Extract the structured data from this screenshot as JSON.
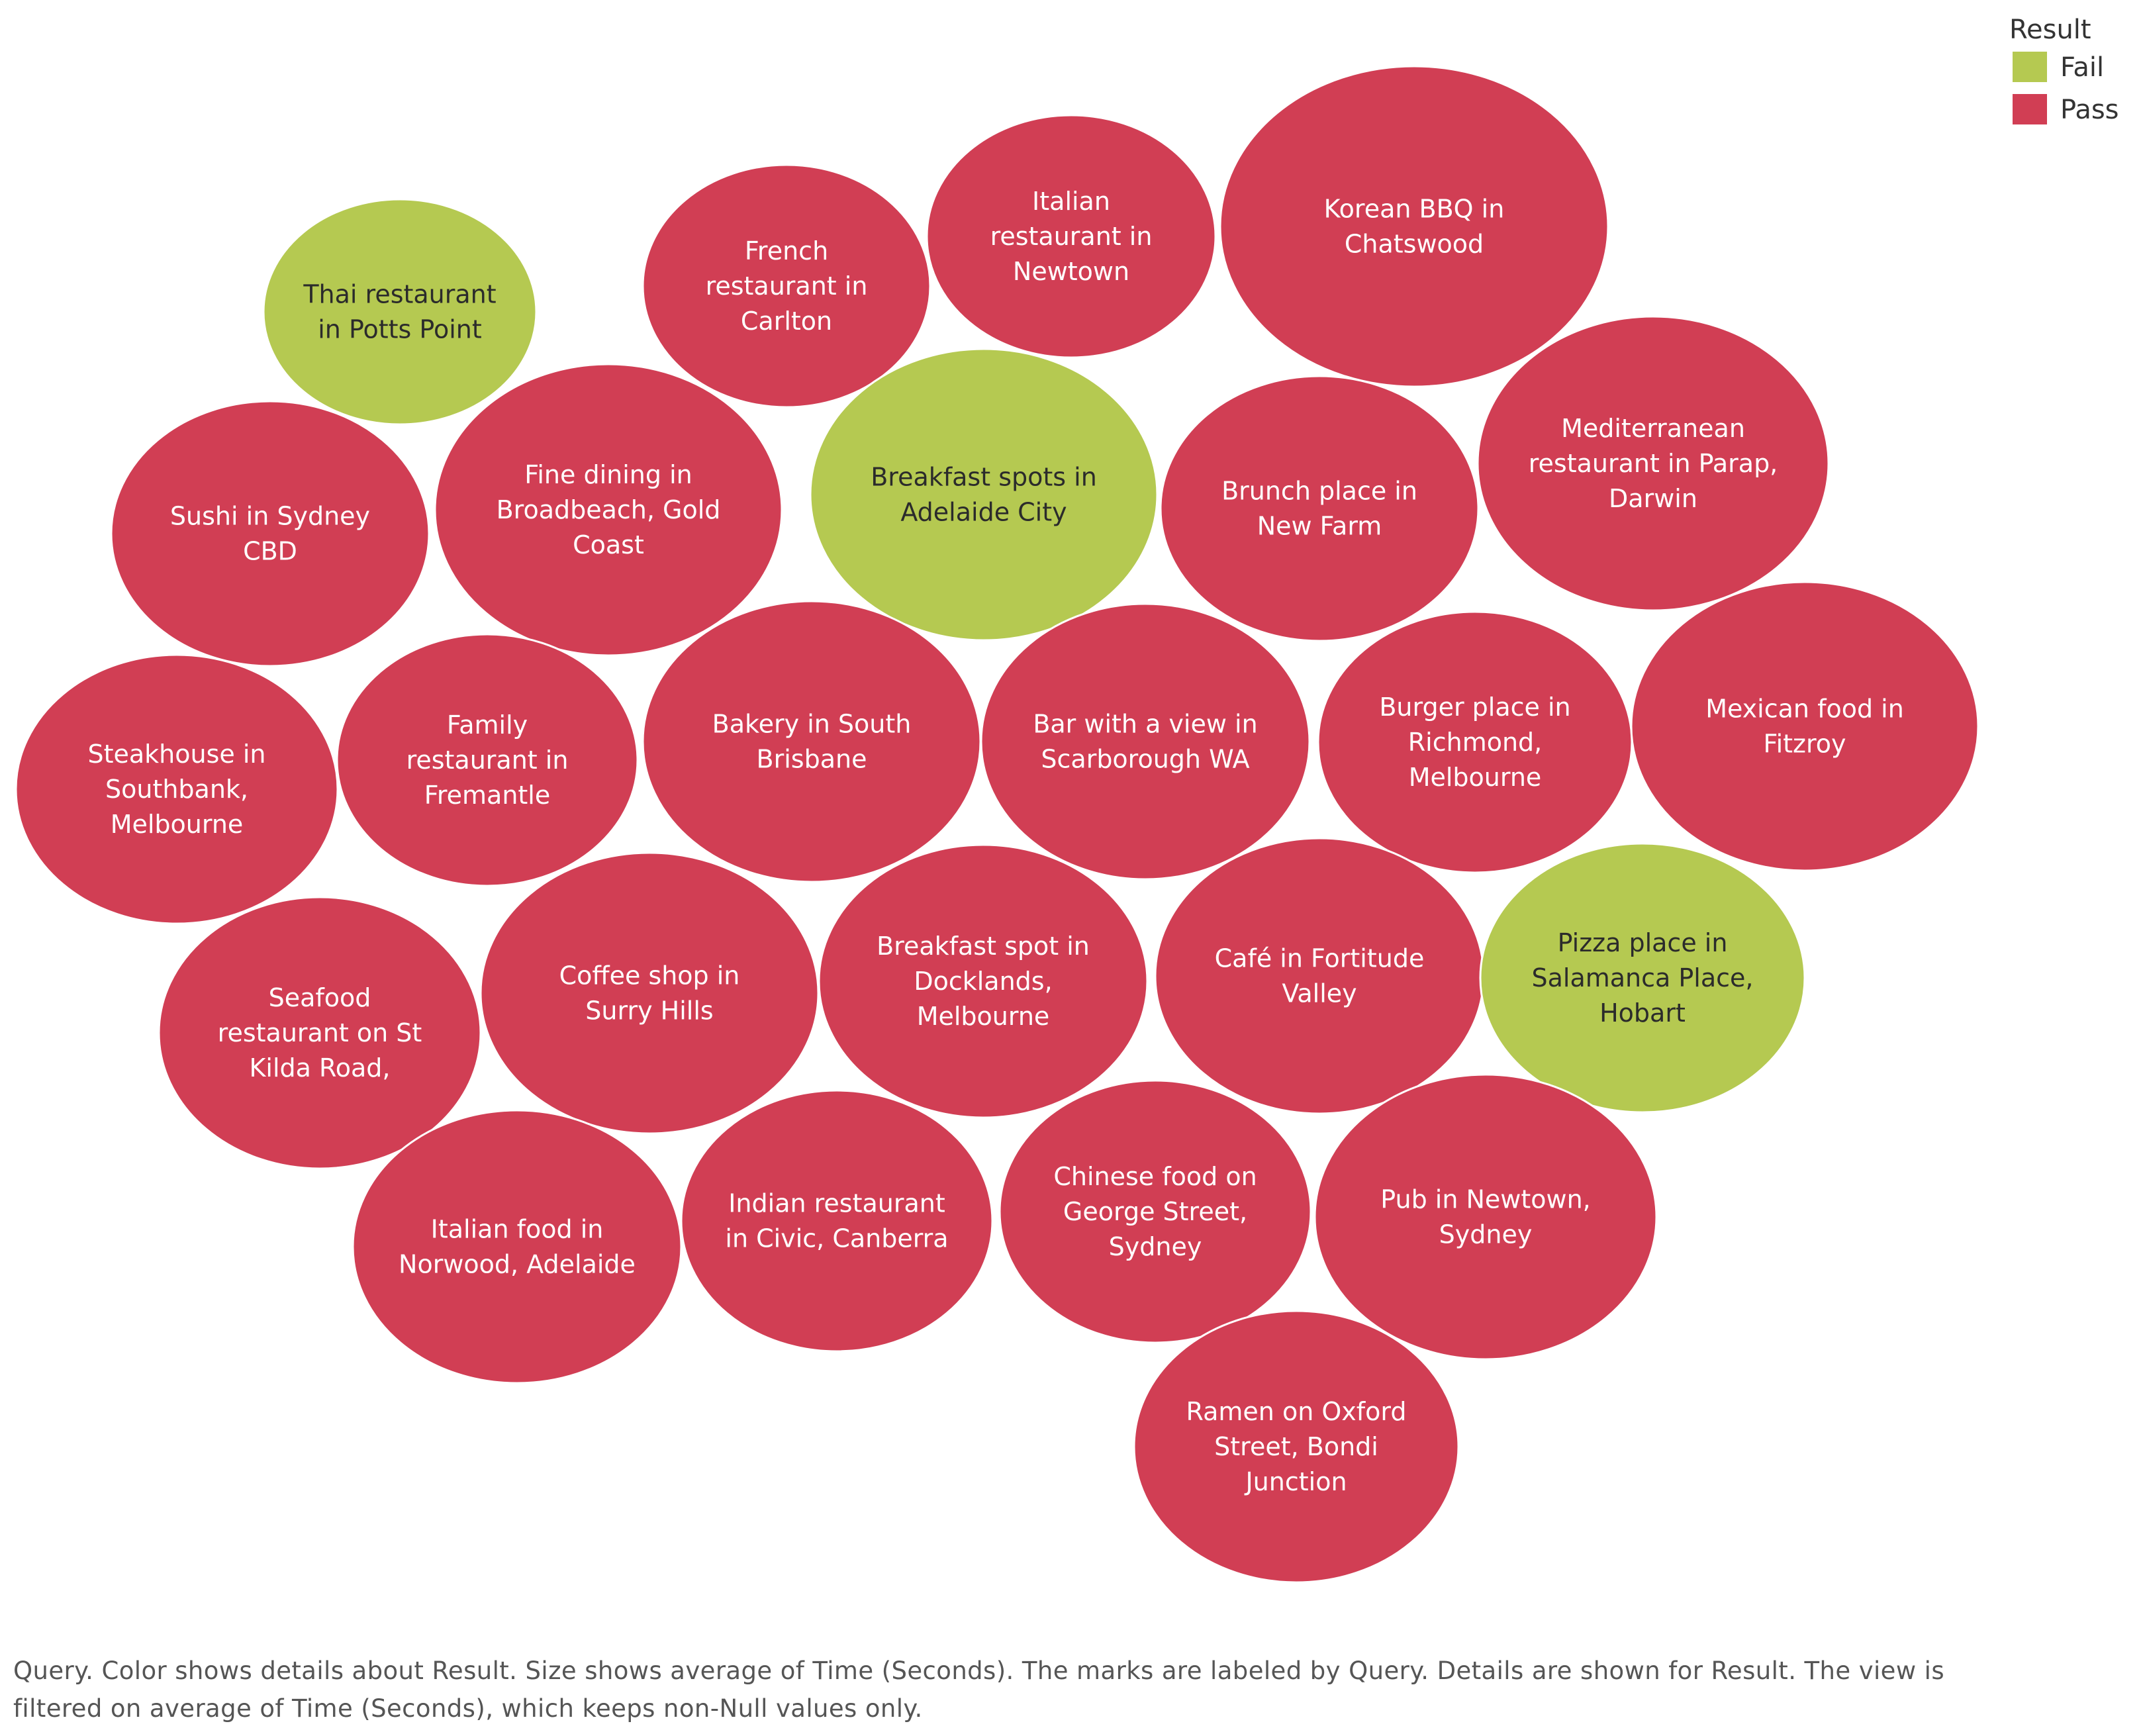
{
  "chart_data": {
    "type": "bubble",
    "legend": {
      "title": "Result",
      "placement": "top-right",
      "entries": [
        {
          "label": "Fail",
          "color": "#b5c951"
        },
        {
          "label": "Pass",
          "color": "#d13e54"
        }
      ]
    },
    "bubbles": [
      {
        "query": "Thai restaurant in Potts Point",
        "result": "Fail",
        "lines": [
          "Thai restaurant",
          "in Potts Point"
        ]
      },
      {
        "query": "French restaurant in Carlton",
        "result": "Pass",
        "lines": [
          "French",
          "restaurant in",
          "Carlton"
        ]
      },
      {
        "query": "Italian restaurant in Newtown",
        "result": "Pass",
        "lines": [
          "Italian",
          "restaurant in",
          "Newtown"
        ]
      },
      {
        "query": "Korean BBQ in Chatswood",
        "result": "Pass",
        "lines": [
          "Korean BBQ in",
          "Chatswood"
        ]
      },
      {
        "query": "Sushi in Sydney CBD",
        "result": "Pass",
        "lines": [
          "Sushi in Sydney",
          "CBD"
        ]
      },
      {
        "query": "Fine dining in Broadbeach, Gold Coast",
        "result": "Pass",
        "lines": [
          "Fine dining in",
          "Broadbeach, Gold",
          "Coast"
        ]
      },
      {
        "query": "Breakfast spots in Adelaide City",
        "result": "Fail",
        "lines": [
          "Breakfast spots in",
          "Adelaide City"
        ]
      },
      {
        "query": "Brunch place in New Farm",
        "result": "Pass",
        "lines": [
          "Brunch place in",
          "New Farm"
        ]
      },
      {
        "query": "Mediterranean restaurant in Parap, Darwin",
        "result": "Pass",
        "lines": [
          "Mediterranean",
          "restaurant in Parap,",
          "Darwin"
        ]
      },
      {
        "query": "Steakhouse in Southbank, Melbourne",
        "result": "Pass",
        "lines": [
          "Steakhouse in",
          "Southbank,",
          "Melbourne"
        ]
      },
      {
        "query": "Family restaurant in Fremantle",
        "result": "Pass",
        "lines": [
          "Family",
          "restaurant in",
          "Fremantle"
        ]
      },
      {
        "query": "Bakery in South Brisbane",
        "result": "Pass",
        "lines": [
          "Bakery in South",
          "Brisbane"
        ]
      },
      {
        "query": "Bar with a view in Scarborough WA",
        "result": "Pass",
        "lines": [
          "Bar with a view in",
          "Scarborough WA"
        ]
      },
      {
        "query": "Burger place in Richmond, Melbourne",
        "result": "Pass",
        "lines": [
          "Burger place in",
          "Richmond,",
          "Melbourne"
        ]
      },
      {
        "query": "Mexican food in Fitzroy",
        "result": "Pass",
        "lines": [
          "Mexican food in",
          "Fitzroy"
        ]
      },
      {
        "query": "Seafood restaurant on St Kilda Road,",
        "result": "Pass",
        "lines": [
          "Seafood",
          "restaurant on St",
          "Kilda Road,"
        ]
      },
      {
        "query": "Coffee shop in Surry Hills",
        "result": "Pass",
        "lines": [
          "Coffee shop in",
          "Surry Hills"
        ]
      },
      {
        "query": "Breakfast spot in Docklands, Melbourne",
        "result": "Pass",
        "lines": [
          "Breakfast spot in",
          "Docklands,",
          "Melbourne"
        ]
      },
      {
        "query": "Café in Fortitude Valley",
        "result": "Pass",
        "lines": [
          "Café in Fortitude",
          "Valley"
        ]
      },
      {
        "query": "Pizza place in Salamanca Place, Hobart",
        "result": "Fail",
        "lines": [
          "Pizza place in",
          "Salamanca Place,",
          "Hobart"
        ]
      },
      {
        "query": "Italian food in Norwood, Adelaide",
        "result": "Pass",
        "lines": [
          "Italian food in",
          "Norwood, Adelaide"
        ]
      },
      {
        "query": "Indian restaurant in Civic, Canberra",
        "result": "Pass",
        "lines": [
          "Indian restaurant",
          "in Civic, Canberra"
        ]
      },
      {
        "query": "Chinese food on George Street, Sydney",
        "result": "Pass",
        "lines": [
          "Chinese food on",
          "George Street,",
          "Sydney"
        ]
      },
      {
        "query": "Pub in Newtown, Sydney",
        "result": "Pass",
        "lines": [
          "Pub in Newtown,",
          "Sydney"
        ]
      },
      {
        "query": "Ramen on Oxford Street, Bondi Junction",
        "result": "Pass",
        "lines": [
          "Ramen on Oxford",
          "Street, Bondi",
          "Junction"
        ]
      }
    ],
    "caption": "Query.  Color shows details about Result.  Size shows average of Time (Seconds).  The marks are labeled by Query.  Details are shown for Result. The view is filtered on average of Time (Seconds), which keeps non-Null values only."
  }
}
